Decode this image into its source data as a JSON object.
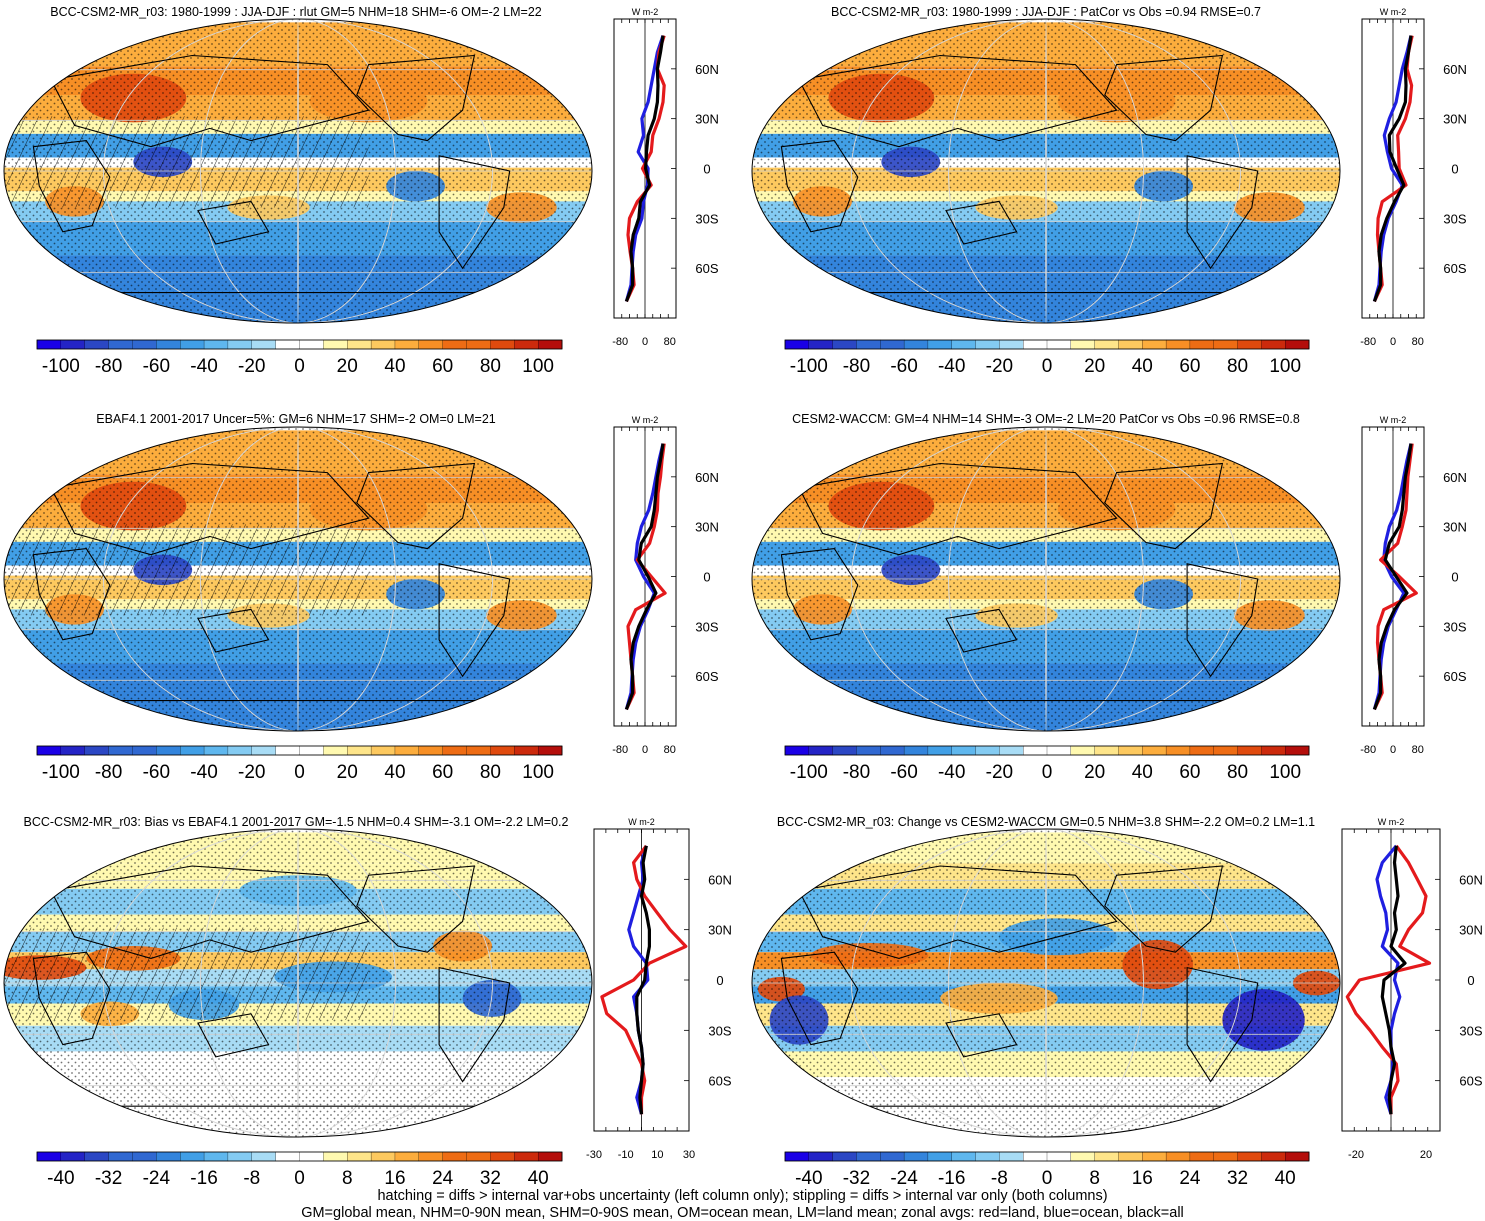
{
  "colors": {
    "land": "#e41a1c",
    "ocean": "#1f1fe0",
    "all": "#000000",
    "warm_palette": [
      "#ffffff",
      "#fff9b0",
      "#fee58a",
      "#fdc95f",
      "#fcad3d",
      "#f78f25",
      "#ee6c14",
      "#e04a0e",
      "#cc2a0c",
      "#b40e0b"
    ],
    "cool_palette": [
      "#ffffff",
      "#a8dcf5",
      "#84cbf2",
      "#5fb7ee",
      "#419fe6",
      "#3384dc",
      "#3068d1",
      "#2b47c4",
      "#2424c6",
      "#1a00e6"
    ]
  },
  "footer": {
    "line1": "hatching = diffs > internal var+obs uncertainty (left column only); stippling = diffs > internal var only (both columns)",
    "line2": "GM=global mean, NHM=0-90N mean, SHM=0-90S mean, OM=ocean mean, LM=land mean; zonal avgs: red=land, blue=ocean, black=all"
  },
  "chart_data": [
    {
      "type": "heatmap",
      "panel": "top-left",
      "title": "BCC-CSM2-MR_r03: 1980-1999 : JJA-DJF : rlut GM=5 NHM=18 SHM=-6 OM=-2 LM=22",
      "colorbar_ticks": [
        "-100",
        "-80",
        "-60",
        "-40",
        "-20",
        "0",
        "20",
        "40",
        "60",
        "80",
        "100"
      ],
      "colorbar_range": [
        -110,
        110
      ],
      "pattern": "seasonal",
      "hatching": true,
      "zonal_profile": {
        "unit": "W m-2",
        "xticks": [
          "-80",
          "0",
          "80"
        ],
        "xlim": [
          -100,
          100
        ],
        "yticks": [
          "60N",
          "30N",
          "0",
          "30S",
          "60S"
        ],
        "lat": [
          80,
          70,
          60,
          50,
          40,
          30,
          20,
          10,
          0,
          -10,
          -20,
          -30,
          -40,
          -50,
          -60,
          -70,
          -80
        ],
        "land": [
          62,
          45,
          40,
          62,
          58,
          45,
          25,
          20,
          -8,
          20,
          -25,
          -50,
          -55,
          -48,
          -40,
          -35,
          -60
        ],
        "ocean": [
          58,
          40,
          30,
          20,
          10,
          -10,
          -5,
          -22,
          10,
          8,
          -5,
          -10,
          -30,
          -38,
          -42,
          -45,
          -60
        ],
        "all": [
          58,
          50,
          40,
          42,
          40,
          30,
          10,
          5,
          2,
          15,
          -15,
          -20,
          -38,
          -45,
          -40,
          -40,
          -60
        ]
      }
    },
    {
      "type": "heatmap",
      "panel": "top-right",
      "title": "BCC-CSM2-MR_r03: 1980-1999 : JJA-DJF : PatCor vs Obs =0.94 RMSE=0.7",
      "colorbar_ticks": [
        "-100",
        "-80",
        "-60",
        "-40",
        "-20",
        "0",
        "20",
        "40",
        "60",
        "80",
        "100"
      ],
      "colorbar_range": [
        -110,
        110
      ],
      "pattern": "seasonal",
      "hatching": false,
      "zonal_profile": {
        "unit": "W m-2",
        "xticks": [
          "-80",
          "0",
          "80"
        ],
        "xlim": [
          -100,
          100
        ],
        "yticks": [
          "60N",
          "30N",
          "0",
          "30S",
          "60S"
        ],
        "lat": [
          80,
          70,
          60,
          50,
          40,
          30,
          20,
          10,
          0,
          -10,
          -20,
          -30,
          -40,
          -50,
          -60,
          -70,
          -80
        ],
        "land": [
          62,
          50,
          45,
          60,
          55,
          40,
          15,
          18,
          20,
          42,
          -35,
          -48,
          -50,
          -45,
          -40,
          -35,
          -60
        ],
        "ocean": [
          58,
          45,
          30,
          20,
          10,
          -12,
          -28,
          -18,
          -5,
          30,
          10,
          -15,
          -30,
          -38,
          -42,
          -45,
          -60
        ],
        "all": [
          58,
          50,
          40,
          42,
          40,
          20,
          -12,
          -10,
          12,
          35,
          5,
          -20,
          -38,
          -45,
          -40,
          -40,
          -60
        ]
      }
    },
    {
      "type": "heatmap",
      "panel": "middle-left",
      "title": "EBAF4.1 2001-2017 Uncer=5%: GM=6 NHM=17 SHM=-2 OM=0 LM=21",
      "colorbar_ticks": [
        "-100",
        "-80",
        "-60",
        "-40",
        "-20",
        "0",
        "20",
        "40",
        "60",
        "80",
        "100"
      ],
      "colorbar_range": [
        -110,
        110
      ],
      "pattern": "seasonal",
      "hatching": true,
      "zonal_profile": {
        "unit": "W m-2",
        "xticks": [
          "-80",
          "0",
          "80"
        ],
        "xlim": [
          -100,
          100
        ],
        "yticks": [
          "60N",
          "30N",
          "0",
          "30S",
          "60S"
        ],
        "lat": [
          80,
          70,
          60,
          50,
          40,
          30,
          20,
          10,
          0,
          -10,
          -20,
          -30,
          -40,
          -50,
          -60,
          -70,
          -80
        ],
        "land": [
          62,
          55,
          50,
          42,
          40,
          30,
          15,
          -25,
          20,
          65,
          -30,
          -55,
          -50,
          -45,
          -40,
          -35,
          -60
        ],
        "ocean": [
          58,
          45,
          35,
          25,
          12,
          -12,
          -25,
          -30,
          -5,
          30,
          10,
          -15,
          -30,
          -38,
          -42,
          -45,
          -60
        ],
        "all": [
          58,
          50,
          40,
          35,
          30,
          20,
          -12,
          -20,
          10,
          35,
          5,
          -20,
          -38,
          -45,
          -40,
          -40,
          -60
        ]
      }
    },
    {
      "type": "heatmap",
      "panel": "middle-right",
      "title": "CESM2-WACCM: GM=4 NHM=14 SHM=-3 OM=-2 LM=20 PatCor vs Obs =0.96 RMSE=0.8",
      "colorbar_ticks": [
        "-100",
        "-80",
        "-60",
        "-40",
        "-20",
        "0",
        "20",
        "40",
        "60",
        "80",
        "100"
      ],
      "colorbar_range": [
        -110,
        110
      ],
      "pattern": "seasonal",
      "hatching": false,
      "zonal_profile": {
        "unit": "W m-2",
        "xticks": [
          "-80",
          "0",
          "80"
        ],
        "xlim": [
          -100,
          100
        ],
        "yticks": [
          "60N",
          "30N",
          "0",
          "30S",
          "60S"
        ],
        "lat": [
          80,
          70,
          60,
          50,
          40,
          30,
          20,
          10,
          0,
          -10,
          -20,
          -30,
          -40,
          -50,
          -60,
          -70,
          -80
        ],
        "land": [
          62,
          55,
          48,
          45,
          42,
          30,
          15,
          -40,
          20,
          75,
          -30,
          -48,
          -50,
          -45,
          -40,
          -35,
          -60
        ],
        "ocean": [
          58,
          45,
          35,
          25,
          12,
          -12,
          -25,
          -30,
          -5,
          35,
          10,
          -15,
          -30,
          -38,
          -42,
          -45,
          -60
        ],
        "all": [
          58,
          50,
          40,
          35,
          30,
          20,
          -12,
          -25,
          10,
          45,
          5,
          -20,
          -38,
          -45,
          -40,
          -40,
          -60
        ]
      }
    },
    {
      "type": "heatmap",
      "panel": "bottom-left",
      "title": "BCC-CSM2-MR_r03: Bias vs EBAF4.1 2001-2017 GM=-1.5 NHM=0.4 SHM=-3.1 OM=-2.2 LM=0.2",
      "colorbar_ticks": [
        "-40",
        "-32",
        "-24",
        "-16",
        "-8",
        "0",
        "8",
        "16",
        "24",
        "32",
        "40"
      ],
      "colorbar_range": [
        -44,
        44
      ],
      "pattern": "bias",
      "hatching": true,
      "zonal_profile": {
        "unit": "W m-2",
        "xticks": [
          "-30",
          "-10",
          "10",
          "30"
        ],
        "xlim": [
          -30,
          30
        ],
        "yticks": [
          "60N",
          "30N",
          "0",
          "30S",
          "60S"
        ],
        "lat": [
          80,
          70,
          60,
          50,
          40,
          30,
          20,
          10,
          0,
          -10,
          -20,
          -30,
          -40,
          -50,
          -60,
          -70,
          -80
        ],
        "land": [
          3,
          -5,
          -3,
          2,
          10,
          18,
          28,
          5,
          -5,
          -25,
          -22,
          -10,
          -5,
          0,
          2,
          0,
          0
        ],
        "ocean": [
          3,
          0,
          1,
          -2,
          -5,
          -8,
          -5,
          3,
          4,
          -5,
          -3,
          -2,
          0,
          1,
          0,
          -3,
          0
        ],
        "all": [
          3,
          1,
          2,
          0,
          3,
          5,
          5,
          3,
          2,
          -3,
          -3,
          -2,
          0,
          1,
          0,
          -1,
          0
        ]
      }
    },
    {
      "type": "heatmap",
      "panel": "bottom-right",
      "title": "BCC-CSM2-MR_r03: Change vs CESM2-WACCM GM=0.5 NHM=3.8 SHM=-2.2 OM=0.2 LM=1.1",
      "colorbar_ticks": [
        "-40",
        "-32",
        "-24",
        "-16",
        "-8",
        "0",
        "8",
        "16",
        "24",
        "32",
        "40"
      ],
      "colorbar_range": [
        -44,
        44
      ],
      "pattern": "change",
      "hatching": false,
      "zonal_profile": {
        "unit": "W m-2",
        "xticks": [
          "-20",
          "20"
        ],
        "xlim": [
          -28,
          28
        ],
        "yticks": [
          "60N",
          "30N",
          "0",
          "30S",
          "60S"
        ],
        "lat": [
          80,
          70,
          60,
          50,
          40,
          30,
          20,
          10,
          0,
          -10,
          -20,
          -30,
          -40,
          -50,
          -60,
          -70,
          -80
        ],
        "land": [
          3,
          10,
          15,
          20,
          18,
          10,
          5,
          22,
          -18,
          -25,
          -20,
          -12,
          -5,
          3,
          4,
          0,
          0
        ],
        "ocean": [
          3,
          -5,
          -8,
          -6,
          -3,
          -2,
          -5,
          4,
          2,
          5,
          2,
          0,
          0,
          1,
          0,
          -3,
          0
        ],
        "all": [
          3,
          2,
          3,
          4,
          2,
          3,
          0,
          8,
          -4,
          -5,
          -3,
          -1,
          0,
          2,
          0,
          -1,
          0
        ]
      }
    }
  ]
}
